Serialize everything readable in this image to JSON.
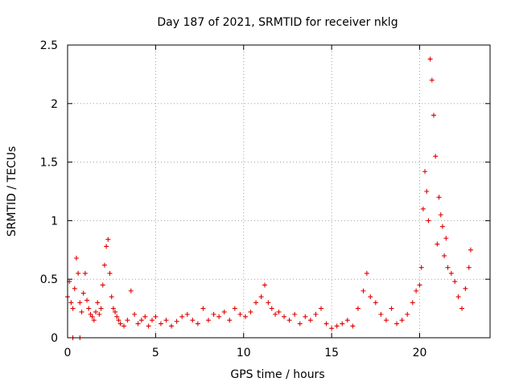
{
  "chart_data": {
    "type": "scatter",
    "title": "Day 187 of 2021, SRMTID for receiver nklg",
    "xlabel": "GPS time / hours",
    "ylabel": "SRMTID / TECUs",
    "xlim": [
      0,
      24
    ],
    "ylim": [
      0,
      2.5
    ],
    "xticks": [
      0,
      5,
      10,
      15,
      20
    ],
    "xtick_labels": [
      "0",
      "5",
      "10",
      "15",
      "20"
    ],
    "yticks": [
      0,
      0.5,
      1,
      1.5,
      2,
      2.5
    ],
    "ytick_labels": [
      "0",
      "0.5",
      "1",
      "1.5",
      "2",
      "2.5"
    ],
    "grid": true,
    "marker": "+",
    "color": "#e00000",
    "series": [
      {
        "name": "SRMTID",
        "x": [
          0.0,
          0.1,
          0.2,
          0.3,
          0.4,
          0.5,
          0.6,
          0.7,
          0.8,
          0.9,
          1.0,
          1.1,
          1.2,
          1.3,
          1.4,
          1.5,
          1.6,
          1.7,
          1.8,
          1.9,
          2.0,
          2.1,
          2.2,
          2.3,
          2.4,
          2.5,
          2.6,
          2.7,
          2.8,
          2.9,
          3.0,
          3.2,
          3.4,
          3.6,
          3.8,
          4.0,
          4.2,
          4.4,
          4.6,
          4.8,
          5.0,
          5.3,
          5.6,
          5.9,
          6.2,
          6.5,
          6.8,
          7.1,
          7.4,
          7.7,
          8.0,
          8.3,
          8.6,
          8.9,
          9.2,
          9.5,
          9.8,
          10.1,
          10.4,
          10.7,
          11.0,
          11.2,
          11.4,
          11.6,
          11.8,
          12.0,
          12.3,
          12.6,
          12.9,
          13.2,
          13.5,
          13.8,
          14.1,
          14.4,
          14.7,
          15.0,
          15.3,
          15.6,
          15.9,
          16.2,
          16.5,
          16.8,
          17.0,
          17.2,
          17.5,
          17.8,
          18.1,
          18.4,
          18.7,
          19.0,
          19.3,
          19.6,
          19.8,
          20.0,
          20.1,
          20.2,
          20.3,
          20.4,
          20.5,
          20.6,
          20.7,
          20.8,
          20.9,
          21.0,
          21.1,
          21.2,
          21.3,
          21.4,
          21.5,
          21.6,
          21.8,
          22.0,
          22.2,
          22.4,
          22.6,
          22.8,
          22.9,
          0.3,
          0.7
        ],
        "y": [
          0.35,
          0.48,
          0.3,
          0.25,
          0.42,
          0.68,
          0.55,
          0.3,
          0.22,
          0.38,
          0.55,
          0.32,
          0.25,
          0.2,
          0.18,
          0.15,
          0.22,
          0.3,
          0.2,
          0.25,
          0.45,
          0.62,
          0.78,
          0.84,
          0.55,
          0.35,
          0.25,
          0.22,
          0.18,
          0.15,
          0.12,
          0.1,
          0.15,
          0.4,
          0.2,
          0.12,
          0.15,
          0.18,
          0.1,
          0.15,
          0.18,
          0.12,
          0.15,
          0.1,
          0.14,
          0.18,
          0.2,
          0.15,
          0.12,
          0.25,
          0.15,
          0.2,
          0.18,
          0.22,
          0.15,
          0.25,
          0.2,
          0.18,
          0.22,
          0.3,
          0.35,
          0.45,
          0.3,
          0.25,
          0.2,
          0.22,
          0.18,
          0.15,
          0.2,
          0.12,
          0.18,
          0.15,
          0.2,
          0.25,
          0.12,
          0.08,
          0.1,
          0.12,
          0.15,
          0.1,
          0.25,
          0.4,
          0.55,
          0.35,
          0.3,
          0.2,
          0.15,
          0.25,
          0.12,
          0.15,
          0.2,
          0.3,
          0.4,
          0.45,
          0.6,
          1.1,
          1.42,
          1.25,
          1.0,
          2.38,
          2.2,
          1.9,
          1.55,
          0.8,
          1.2,
          1.05,
          0.95,
          0.7,
          0.85,
          0.6,
          0.55,
          0.48,
          0.35,
          0.25,
          0.42,
          0.6,
          0.75,
          0.0,
          0.0
        ]
      }
    ]
  }
}
